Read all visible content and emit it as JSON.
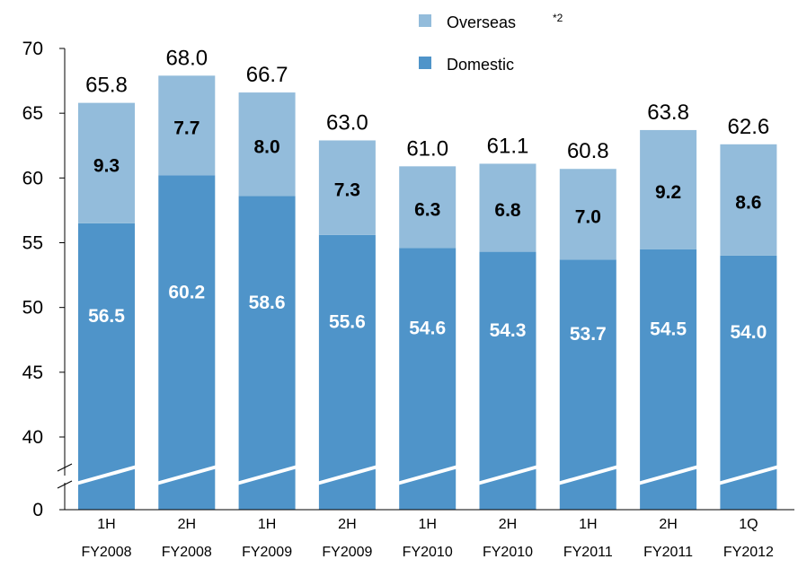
{
  "chart_data": {
    "type": "bar",
    "stacked": true,
    "categories": [
      [
        "1H",
        "FY2008"
      ],
      [
        "2H",
        "FY2008"
      ],
      [
        "1H",
        "FY2009"
      ],
      [
        "2H",
        "FY2009"
      ],
      [
        "1H",
        "FY2010"
      ],
      [
        "2H",
        "FY2010"
      ],
      [
        "1H",
        "FY2011"
      ],
      [
        "2H",
        "FY2011"
      ],
      [
        "1Q",
        "FY2012"
      ]
    ],
    "series": [
      {
        "name": "Domestic",
        "color": "#4f94c9",
        "label_color": "#ffffff",
        "values": [
          56.5,
          60.2,
          58.6,
          55.6,
          54.6,
          54.3,
          53.7,
          54.5,
          54.0
        ],
        "labels": [
          "56.5",
          "60.2",
          "58.6",
          "55.6",
          "54.6",
          "54.3",
          "53.7",
          "54.5",
          "54.0"
        ]
      },
      {
        "name": "Overseas",
        "name_superscript": "*2",
        "color": "#93bcdb",
        "label_color": "#000000",
        "values": [
          9.3,
          7.7,
          8.0,
          7.3,
          6.3,
          6.8,
          7.0,
          9.2,
          8.6
        ],
        "labels": [
          "9.3",
          "7.7",
          "8.0",
          "7.3",
          "6.3",
          "6.8",
          "7.0",
          "9.2",
          "8.6"
        ]
      }
    ],
    "totals": [
      65.8,
      68.0,
      66.7,
      63.0,
      61.0,
      61.1,
      60.8,
      63.8,
      62.6
    ],
    "total_labels": [
      "65.8",
      "68.0",
      "66.7",
      "63.0",
      "61.0",
      "61.1",
      "60.8",
      "63.8",
      "62.6"
    ],
    "ylim": [
      40,
      70
    ],
    "axis_break": true,
    "yticks": [
      {
        "value": 70,
        "label": "70"
      },
      {
        "value": 65,
        "label": "65"
      },
      {
        "value": 60,
        "label": "60"
      },
      {
        "value": 55,
        "label": "55"
      },
      {
        "value": 50,
        "label": "50"
      },
      {
        "value": 45,
        "label": "45"
      },
      {
        "value": 40,
        "label": "40"
      }
    ],
    "baseline_label": "0",
    "legend_position": "top-right",
    "grid": false
  }
}
